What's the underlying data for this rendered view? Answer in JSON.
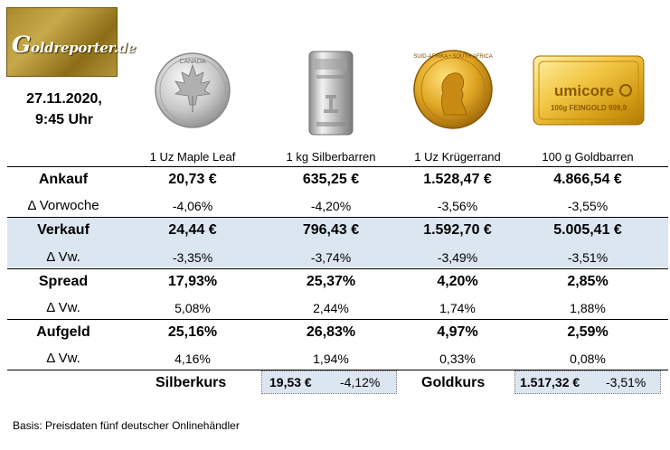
{
  "logo": {
    "text": "Goldreporter.de",
    "first_letter": "G",
    "rest": "oldreporter.de"
  },
  "datetime": {
    "date": "27.11.2020,",
    "time": "9:45 Uhr"
  },
  "products": [
    {
      "name": "1 Uz Maple Leaf",
      "image": "silver-maple-leaf-coin",
      "coin_text": "CANADA"
    },
    {
      "name": "1 kg Silberbarren",
      "image": "silver-bar"
    },
    {
      "name": "1 Uz Krügerrand",
      "image": "gold-krugerrand-coin",
      "coin_text": "SUID-AFRIKA • SOUTH AFRICA"
    },
    {
      "name": "100 g Goldbarren",
      "image": "gold-bar",
      "bar_brand": "umicore",
      "bar_text": "100g FEINGOLD 999,9"
    }
  ],
  "rows": [
    {
      "label": "Ankauf",
      "bold": true,
      "values": [
        "20,73 €",
        "635,25 €",
        "1.528,47 €",
        "4.866,54 €"
      ]
    },
    {
      "label": "Δ Vorwoche",
      "bold": false,
      "values": [
        "-4,06%",
        "-4,20%",
        "-3,56%",
        "-3,55%"
      ]
    },
    {
      "label": "Verkauf",
      "bold": true,
      "values": [
        "24,44 €",
        "796,43 €",
        "1.592,70 €",
        "5.005,41 €"
      ]
    },
    {
      "label": "Δ Vw.",
      "bold": false,
      "values": [
        "-3,35%",
        "-3,74%",
        "-3,49%",
        "-3,51%"
      ]
    },
    {
      "label": "Spread",
      "bold": true,
      "values": [
        "17,93%",
        "25,37%",
        "4,20%",
        "2,85%"
      ]
    },
    {
      "label": "Δ Vw.",
      "bold": false,
      "values": [
        "5,08%",
        "2,44%",
        "1,74%",
        "1,88%"
      ]
    },
    {
      "label": "Aufgeld",
      "bold": true,
      "values": [
        "25,16%",
        "26,83%",
        "4,97%",
        "2,59%"
      ]
    },
    {
      "label": "Δ Vw.",
      "bold": false,
      "values": [
        "4,16%",
        "1,94%",
        "0,33%",
        "0,08%"
      ]
    }
  ],
  "kurse": {
    "silver": {
      "label": "Silberkurs",
      "value": "19,53 €",
      "change": "-4,12%"
    },
    "gold": {
      "label": "Goldkurs",
      "value": "1.517,32 €",
      "change": "-3,51%"
    }
  },
  "footer": "Basis: Preisdaten fünf deutscher Onlinehändler",
  "colors": {
    "band": "#dce6f1",
    "logo_gold": "#b4963a"
  }
}
